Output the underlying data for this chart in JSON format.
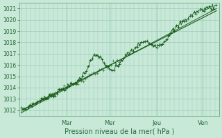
{
  "title": "",
  "xlabel": "Pression niveau de la mer( hPa )",
  "ylabel": "",
  "ylim": [
    1011.5,
    1021.5
  ],
  "yticks": [
    1012,
    1013,
    1014,
    1015,
    1016,
    1017,
    1018,
    1019,
    1020,
    1021
  ],
  "x_day_labels": [
    "Mar",
    "Mer",
    "Jeu",
    "Ven"
  ],
  "bg_color": "#c8e8d8",
  "grid_color": "#99ccbb",
  "line_color": "#1a5c1a",
  "dot_color": "#1a5c1a",
  "axis_color": "#5a9a6a",
  "tick_color": "#2a6a3a",
  "label_color": "#2a6a3a",
  "figsize": [
    3.2,
    2.0
  ],
  "dpi": 100
}
